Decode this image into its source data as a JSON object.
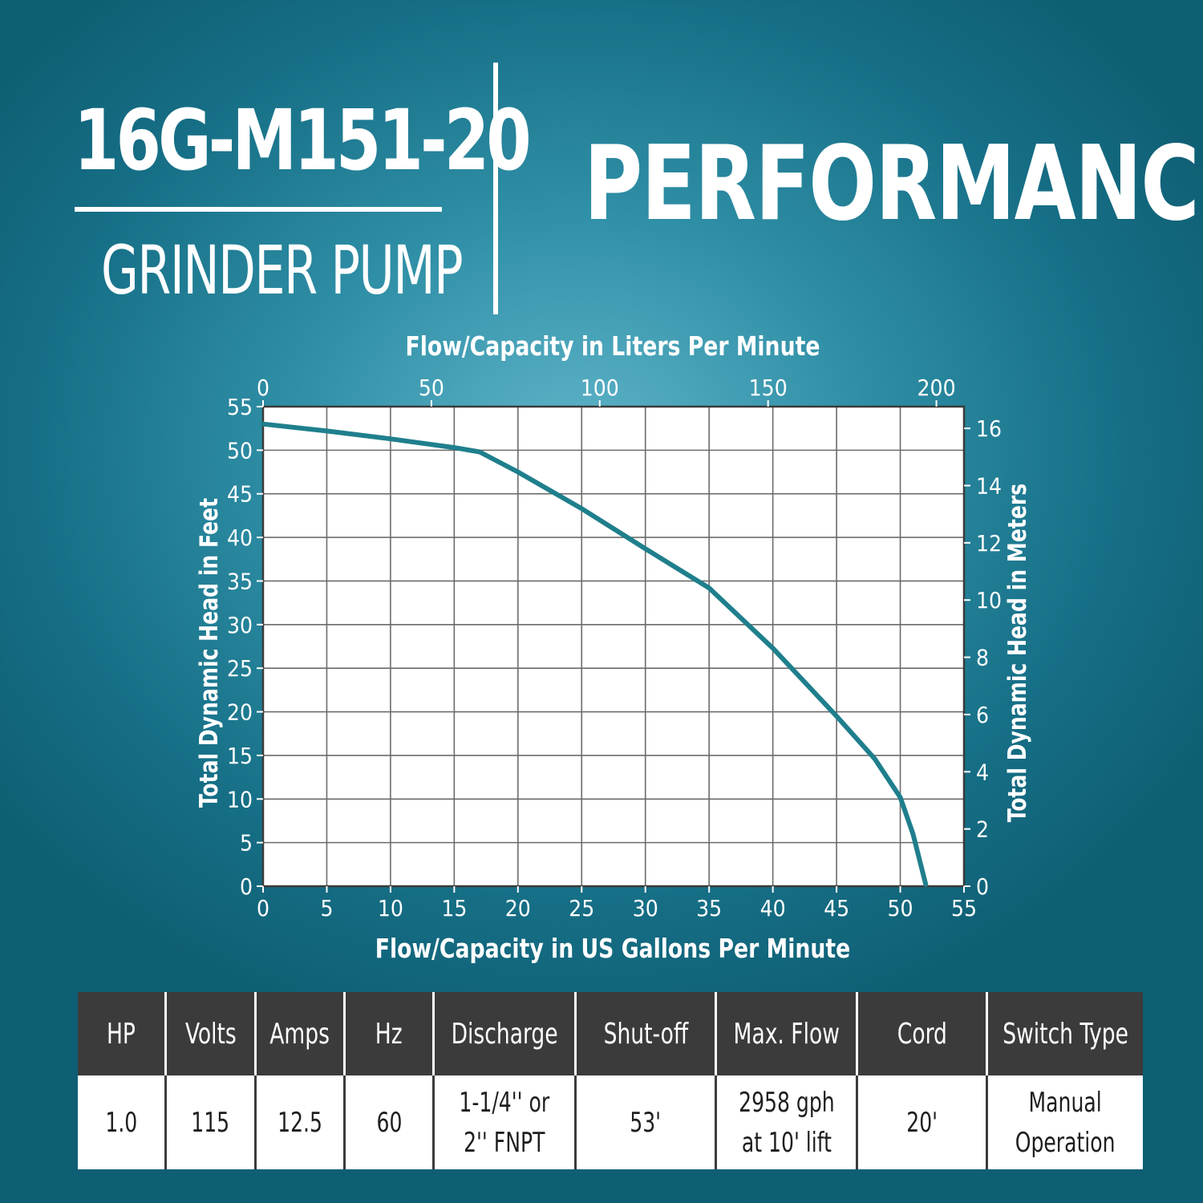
{
  "header": {
    "model": "16G-M151-20",
    "product": "GRINDER PUMP",
    "headline": "PERFORMANCE"
  },
  "colors": {
    "curve": "#1f7f8c",
    "grid": "#6b6b6b",
    "plot_bg": "#ffffff",
    "table_header_bg": "#3b3b3b",
    "text": "#ffffff"
  },
  "chart_data": {
    "type": "line",
    "title": "",
    "xlabel": "Flow/Capacity in US Gallons Per Minute",
    "ylabel": "Total Dynamic Head in Feet",
    "x2label": "Flow/Capacity in Liters Per Minute",
    "y2label": "Total Dynamic Head in Meters",
    "xlim": [
      0,
      55
    ],
    "ylim": [
      0,
      55
    ],
    "x2lim": [
      0,
      208.2
    ],
    "y2lim": [
      0,
      16.76
    ],
    "xticks": [
      0,
      5,
      10,
      15,
      20,
      25,
      30,
      35,
      40,
      45,
      50,
      55
    ],
    "yticks": [
      0,
      5,
      10,
      15,
      20,
      25,
      30,
      35,
      40,
      45,
      50,
      55
    ],
    "x2ticks": [
      0,
      50,
      100,
      150,
      200
    ],
    "y2ticks": [
      0,
      2,
      4,
      6,
      8,
      10,
      12,
      14,
      16
    ],
    "grid": true,
    "legend": "none",
    "series": [
      {
        "x": [
          0,
          5,
          10,
          15,
          17,
          20,
          25,
          30,
          35,
          40,
          45,
          48,
          50,
          51,
          52
        ],
        "y": [
          53,
          52.2,
          51.3,
          50.3,
          49.8,
          47.5,
          43.3,
          38.7,
          34.2,
          27.3,
          19.5,
          14.6,
          10.2,
          6,
          0.2
        ]
      }
    ]
  },
  "specs": {
    "headers": [
      "HP",
      "Volts",
      "Amps",
      "Hz",
      "Discharge",
      "Shut-off",
      "Max. Flow",
      "Cord",
      "Switch Type"
    ],
    "values": [
      [
        "1.0"
      ],
      [
        "115"
      ],
      [
        "12.5"
      ],
      [
        "60"
      ],
      [
        "1-1/4'' or",
        "2'' FNPT"
      ],
      [
        "53'"
      ],
      [
        "2958 gph",
        "at 10' lift"
      ],
      [
        "20'"
      ],
      [
        "Manual",
        "Operation"
      ]
    ]
  }
}
